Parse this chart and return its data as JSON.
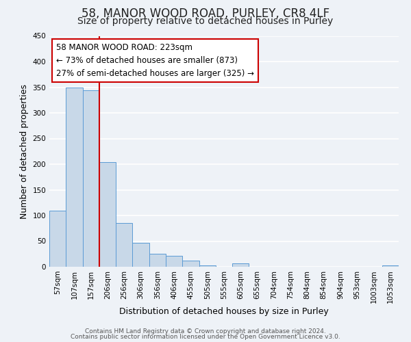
{
  "title": "58, MANOR WOOD ROAD, PURLEY, CR8 4LF",
  "subtitle": "Size of property relative to detached houses in Purley",
  "xlabel": "Distribution of detached houses by size in Purley",
  "ylabel": "Number of detached properties",
  "bar_color": "#c8d8e8",
  "bar_edge_color": "#5b9bd5",
  "background_color": "#eef2f7",
  "grid_color": "#ffffff",
  "annotation_box_color": "#ffffff",
  "annotation_box_edge": "#cc0000",
  "vline_color": "#cc0000",
  "categories": [
    "57sqm",
    "107sqm",
    "157sqm",
    "206sqm",
    "256sqm",
    "306sqm",
    "356sqm",
    "406sqm",
    "455sqm",
    "505sqm",
    "555sqm",
    "605sqm",
    "655sqm",
    "704sqm",
    "754sqm",
    "804sqm",
    "854sqm",
    "904sqm",
    "953sqm",
    "1003sqm",
    "1053sqm"
  ],
  "values": [
    110,
    349,
    344,
    204,
    86,
    47,
    25,
    22,
    12,
    3,
    0,
    7,
    0,
    0,
    0,
    0,
    0,
    0,
    0,
    0,
    3
  ],
  "ylim": [
    0,
    450
  ],
  "yticks": [
    0,
    50,
    100,
    150,
    200,
    250,
    300,
    350,
    400,
    450
  ],
  "vline_pos": 3,
  "annotation_line1": "58 MANOR WOOD ROAD: 223sqm",
  "annotation_line2": "← 73% of detached houses are smaller (873)",
  "annotation_line3": "27% of semi-detached houses are larger (325) →",
  "footer_line1": "Contains HM Land Registry data © Crown copyright and database right 2024.",
  "footer_line2": "Contains public sector information licensed under the Open Government Licence v3.0.",
  "title_fontsize": 12,
  "subtitle_fontsize": 10,
  "annotation_fontsize": 8.5,
  "axis_label_fontsize": 9,
  "tick_fontsize": 7.5,
  "footer_fontsize": 6.5
}
